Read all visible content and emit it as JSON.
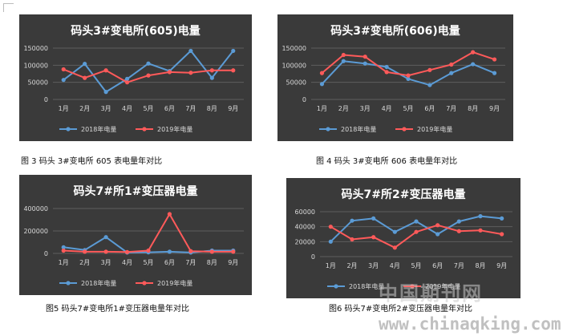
{
  "chart_data": [
    {
      "type": "line",
      "title": "码头3#变电所(605)电量",
      "categories": [
        "1月",
        "2月",
        "3月",
        "4月",
        "5月",
        "6月",
        "7月",
        "8月",
        "9月"
      ],
      "ylim": [
        0,
        150000
      ],
      "yticks": [
        "0",
        "50000",
        "100000",
        "150000"
      ],
      "grid": true,
      "legend": "bottom",
      "series": [
        {
          "name": "2018年电量",
          "color": "#5b9bd5",
          "values": [
            57000,
            104000,
            22000,
            60000,
            105000,
            83000,
            142000,
            63000,
            142000
          ]
        },
        {
          "name": "2019年电量",
          "color": "#ff5a5a",
          "values": [
            88000,
            63000,
            85000,
            50000,
            70000,
            80000,
            78000,
            85000,
            85000
          ]
        }
      ]
    },
    {
      "type": "line",
      "title": "码头3#变电所(606)电量",
      "categories": [
        "1月",
        "2月",
        "3月",
        "4月",
        "5月",
        "6月",
        "7月",
        "8月",
        "9月"
      ],
      "ylim": [
        0,
        150000
      ],
      "yticks": [
        "0",
        "50000",
        "100000",
        "150000"
      ],
      "grid": true,
      "legend": "bottom",
      "series": [
        {
          "name": "2018年电量",
          "color": "#5b9bd5",
          "values": [
            45000,
            112000,
            105000,
            95000,
            60000,
            42000,
            77000,
            103000,
            77000
          ]
        },
        {
          "name": "2019年电量",
          "color": "#ff5a5a",
          "values": [
            77000,
            130000,
            125000,
            80000,
            70000,
            86000,
            102000,
            138000,
            117000
          ]
        }
      ]
    },
    {
      "type": "line",
      "title": "码头7#所1#变压器电量",
      "categories": [
        "1月",
        "2月",
        "3月",
        "4月",
        "5月",
        "6月",
        "7月",
        "8月",
        "9月"
      ],
      "ylim": [
        0,
        400000
      ],
      "yticks": [
        "0",
        "200000",
        "400000"
      ],
      "grid": true,
      "legend": "bottom",
      "series": [
        {
          "name": "2018年电量",
          "color": "#5b9bd5",
          "values": [
            55000,
            30000,
            145000,
            8000,
            10000,
            15000,
            8000,
            25000,
            25000
          ]
        },
        {
          "name": "2019年电量",
          "color": "#ff5a5a",
          "values": [
            25000,
            15000,
            15000,
            12000,
            25000,
            350000,
            20000,
            15000,
            15000
          ]
        }
      ]
    },
    {
      "type": "line",
      "title": "码头7#所2#变压器电量",
      "categories": [
        "1月",
        "2月",
        "3月",
        "4月",
        "5月",
        "6月",
        "7月",
        "8月",
        "9月"
      ],
      "ylim": [
        0,
        60000
      ],
      "yticks": [
        "0",
        "20000",
        "40000",
        "60000"
      ],
      "grid": true,
      "legend": "bottom",
      "series": [
        {
          "name": "2018年电量",
          "color": "#5b9bd5",
          "values": [
            20000,
            48000,
            51000,
            33000,
            47000,
            30000,
            47000,
            54000,
            51000
          ]
        },
        {
          "name": "2019年电量",
          "color": "#ff5a5a",
          "values": [
            40000,
            23000,
            26000,
            12000,
            33000,
            42000,
            34000,
            35000,
            30000
          ]
        }
      ]
    }
  ],
  "captions": [
    "图 3  码头 3#变电所 605 表电量年对比",
    "图 4  码头 3#变电所 606 表电量年对比",
    "图5  码头7#变电所1#变压器电量年对比",
    "图6  码头7#变电所2#变压器电量年对比"
  ],
  "watermark": {
    "chinese": "中国期刊网",
    "url": "www.chinaqking.com"
  }
}
